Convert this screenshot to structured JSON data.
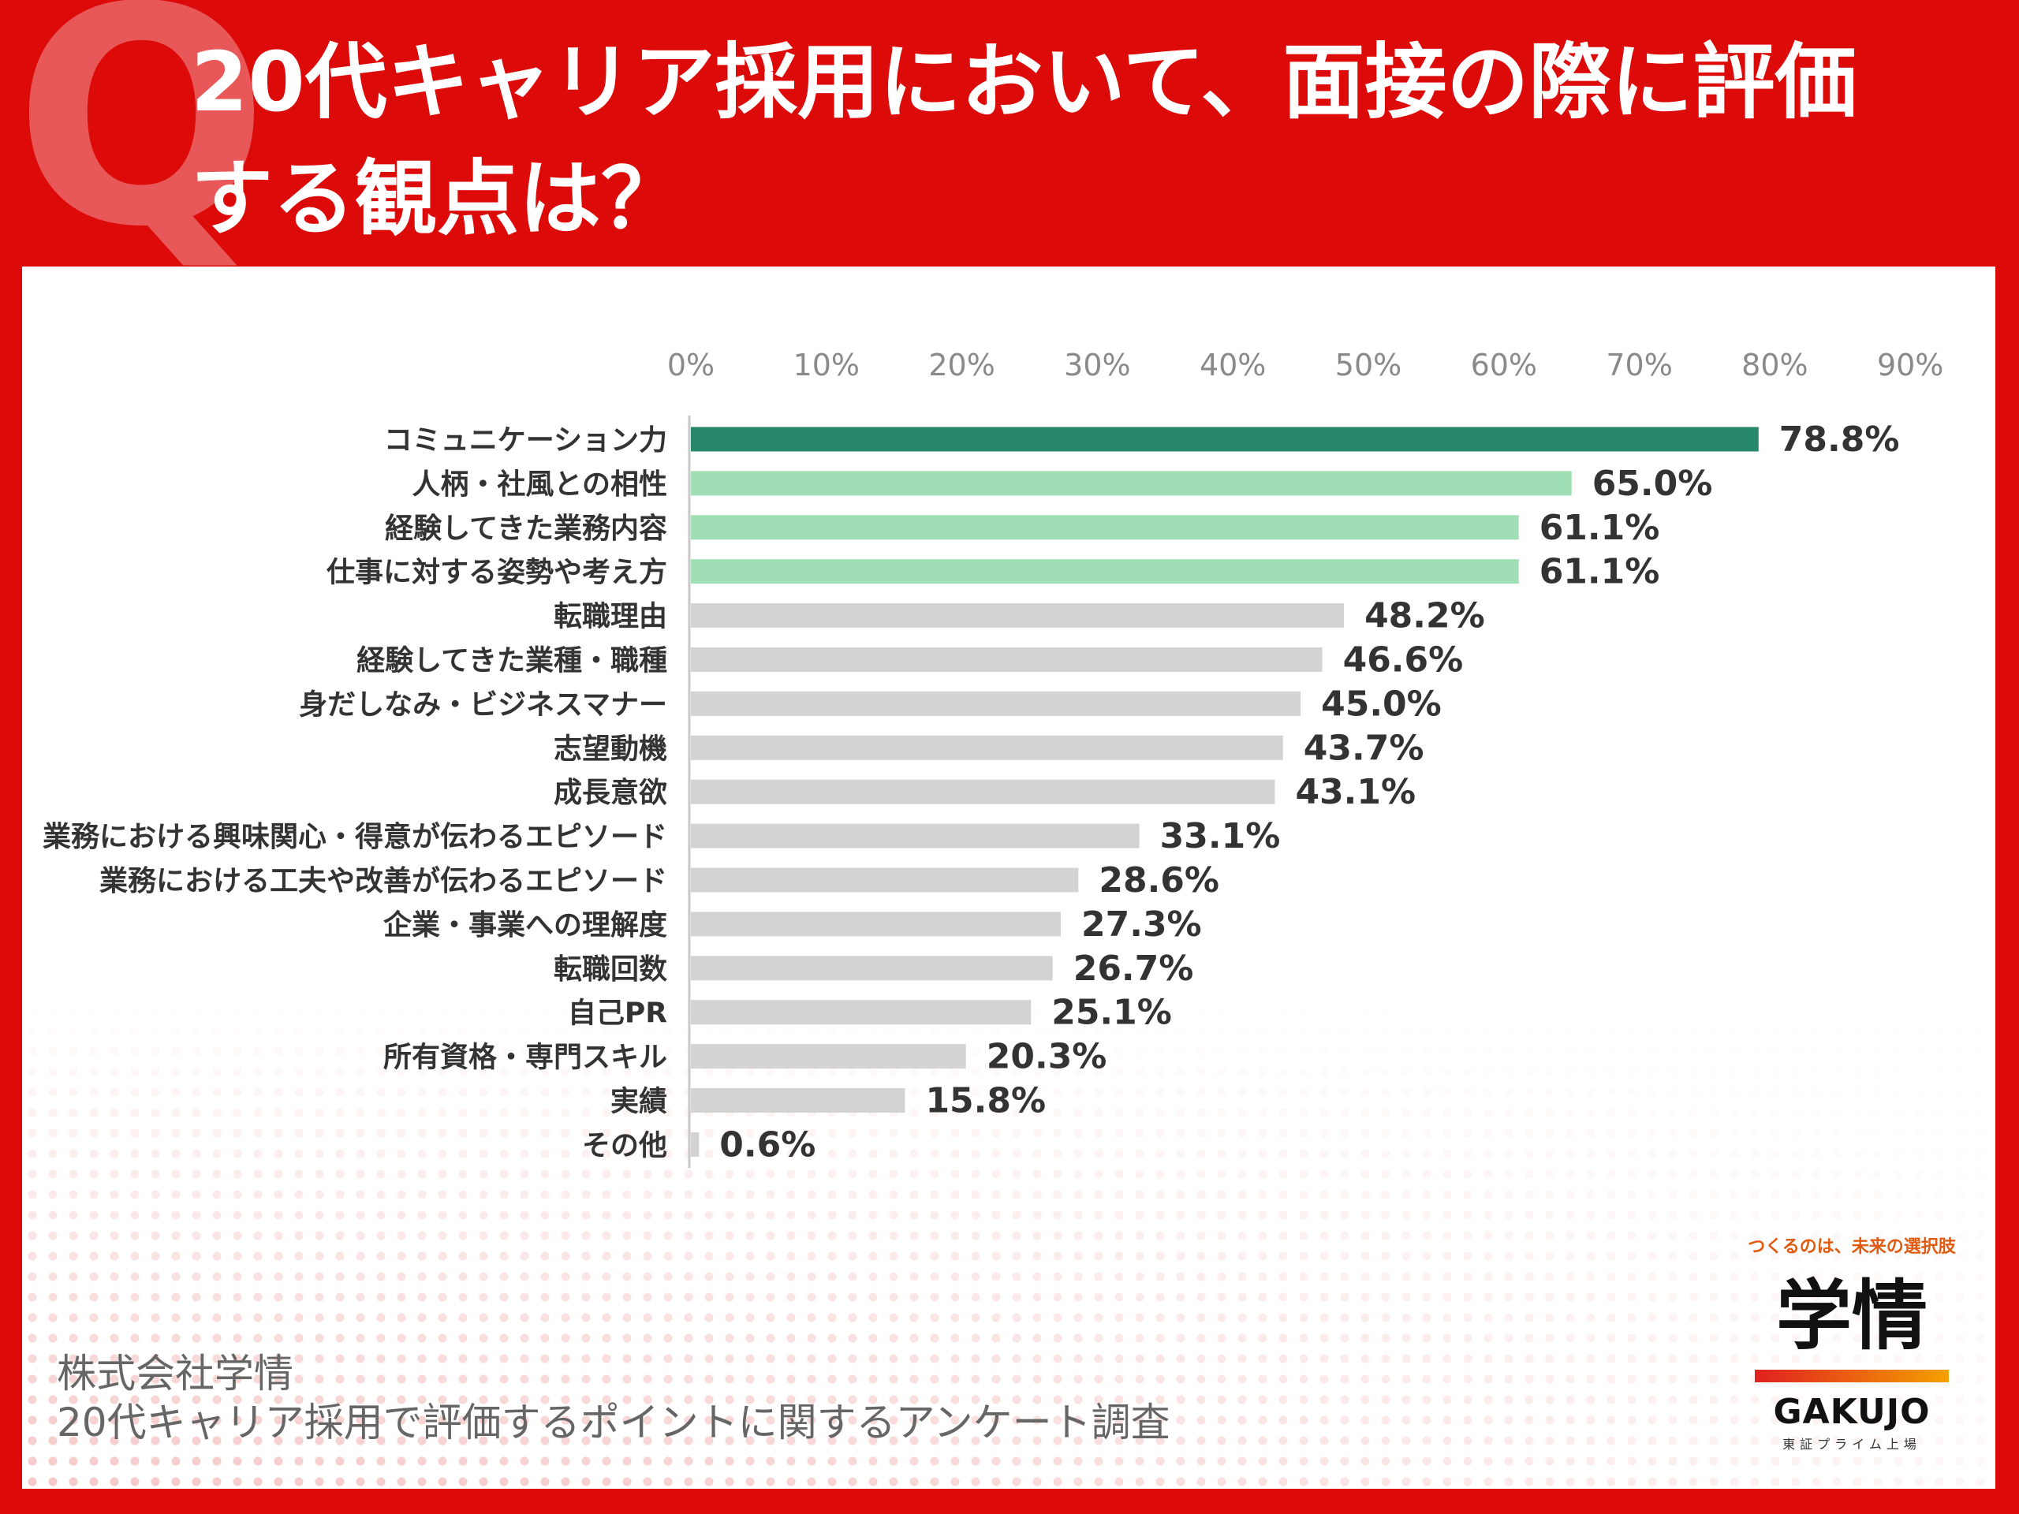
{
  "header": {
    "q_mark": "Q",
    "title_line1": "20代キャリア採用において、面接の際に評価",
    "title_line2": "する観点は？"
  },
  "source": {
    "line1": "株式会社学情",
    "line2": "20代キャリア採用で評価するポイントに関するアンケート調査"
  },
  "logo": {
    "tagline": "つくるのは、未来の選択肢",
    "mark": "学情",
    "name": "GAKUJO",
    "sub": "東証プライム上場"
  },
  "colors": {
    "header_red": "#dd0a0a",
    "top_bar": "#27876a",
    "highlight_bar": "#a0dfb5",
    "other_bar": "#d4d3d3",
    "label_text": "#333333",
    "axis_text": "#8a8a8a"
  },
  "chart_data": {
    "type": "bar",
    "orientation": "horizontal",
    "xlim": [
      0,
      90
    ],
    "x_ticks": [
      "0%",
      "10%",
      "20%",
      "30%",
      "40%",
      "50%",
      "60%",
      "70%",
      "80%",
      "90%"
    ],
    "x_tick_values": [
      0,
      10,
      20,
      30,
      40,
      50,
      60,
      70,
      80,
      90
    ],
    "grid": false,
    "categories": [
      "コミュニケーション力",
      "人柄・社風との相性",
      "経験してきた業務内容",
      "仕事に対する姿勢や考え方",
      "転職理由",
      "経験してきた業種・職種",
      "身だしなみ・ビジネスマナー",
      "志望動機",
      "成長意欲",
      "業務における興味関心・得意が伝わるエピソード",
      "業務における工夫や改善が伝わるエピソード",
      "企業・事業への理解度",
      "転職回数",
      "自己PR",
      "所有資格・専門スキル",
      "実績",
      "その他"
    ],
    "values": [
      78.8,
      65.0,
      61.1,
      61.1,
      48.2,
      46.6,
      45.0,
      43.7,
      43.1,
      33.1,
      28.6,
      27.3,
      26.7,
      25.1,
      20.3,
      15.8,
      0.6
    ],
    "value_labels": [
      "78.8%",
      "65.0%",
      "61.1%",
      "61.1%",
      "48.2%",
      "46.6%",
      "45.0%",
      "43.7%",
      "43.1%",
      "33.1%",
      "28.6%",
      "27.3%",
      "26.7%",
      "25.1%",
      "20.3%",
      "15.8%",
      "0.6%"
    ],
    "bar_colors": [
      "#27876a",
      "#a0dfb5",
      "#a0dfb5",
      "#a0dfb5",
      "#d4d3d3",
      "#d4d3d3",
      "#d4d3d3",
      "#d4d3d3",
      "#d4d3d3",
      "#d4d3d3",
      "#d4d3d3",
      "#d4d3d3",
      "#d4d3d3",
      "#d4d3d3",
      "#d4d3d3",
      "#d4d3d3",
      "#d4d3d3"
    ]
  }
}
